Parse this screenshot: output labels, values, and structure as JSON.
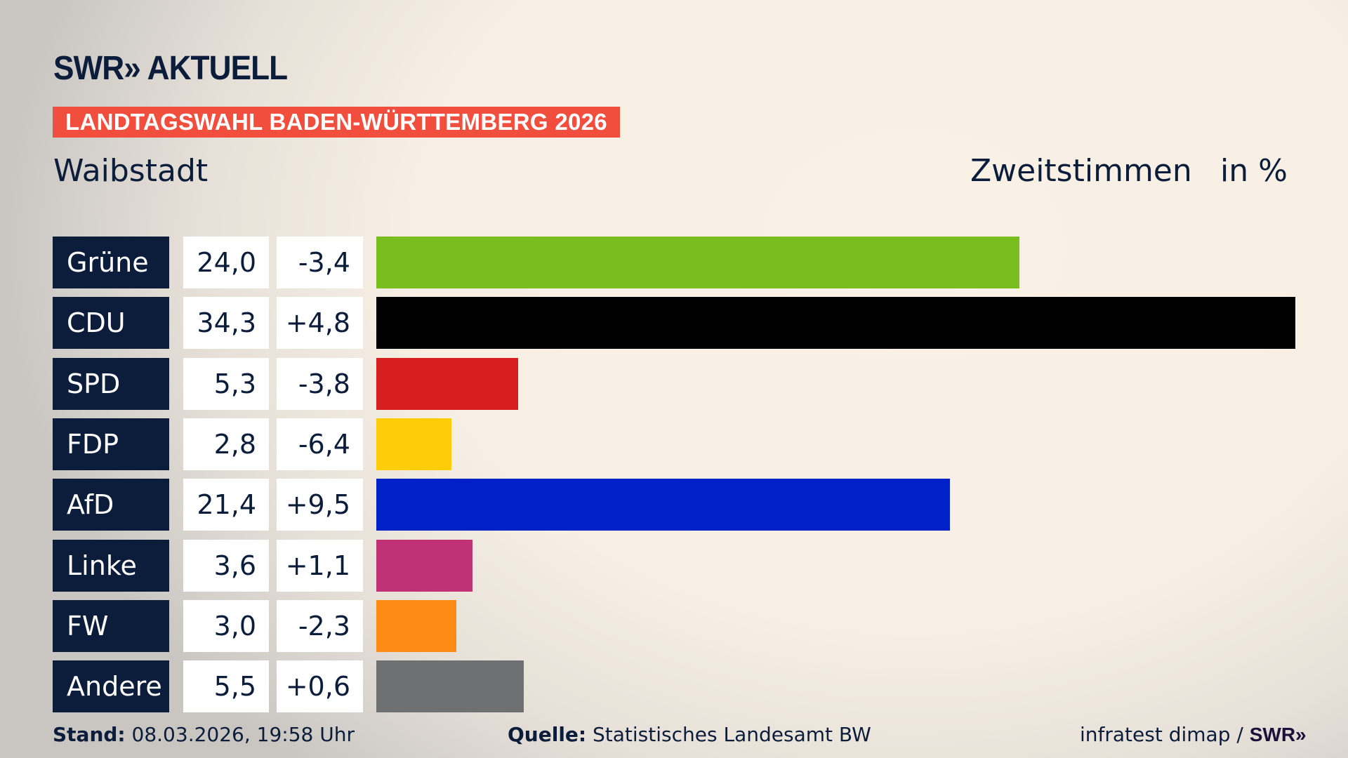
{
  "header": {
    "logo": "SWR» AKTUELL",
    "banner": "LANDTAGSWAHL BADEN-WÜRTTEMBERG 2026",
    "place": "Waibstadt",
    "measure": "Zweitstimmen",
    "unit": "in %"
  },
  "chart_data": {
    "type": "bar",
    "orientation": "horizontal",
    "title": "Waibstadt",
    "categories": [
      "Grüne",
      "CDU",
      "SPD",
      "FDP",
      "AfD",
      "Linke",
      "FW",
      "Andere"
    ],
    "values": [
      24.0,
      34.3,
      5.3,
      2.8,
      21.4,
      3.6,
      3.0,
      5.5
    ],
    "value_labels": [
      "24,0",
      "34,3",
      "5,3",
      "2,8",
      "21,4",
      "3,6",
      "3,0",
      "5,5"
    ],
    "change_labels": [
      "-3,4",
      "+4,8",
      "-3,8",
      "-6,4",
      "+9,5",
      "+1,1",
      "-2,3",
      "+0,6"
    ],
    "changes": [
      -3.4,
      4.8,
      -3.8,
      -6.4,
      9.5,
      1.1,
      -2.3,
      0.6
    ],
    "colors": [
      "#7abd1e",
      "#000000",
      "#d71f1f",
      "#fecd0a",
      "#0021c8",
      "#bf3276",
      "#fd8a15",
      "#6f7072"
    ],
    "unit": "in %",
    "xlim": [
      0,
      34.3
    ],
    "grid": false,
    "legend": "none"
  },
  "footer": {
    "stand_label": "Stand:",
    "stand_value": "08.03.2026, 19:58 Uhr",
    "source_label": "Quelle:",
    "source_value": "Statistisches Landesamt BW",
    "credit": "infratest dimap /",
    "credit_logo": "SWR»"
  }
}
